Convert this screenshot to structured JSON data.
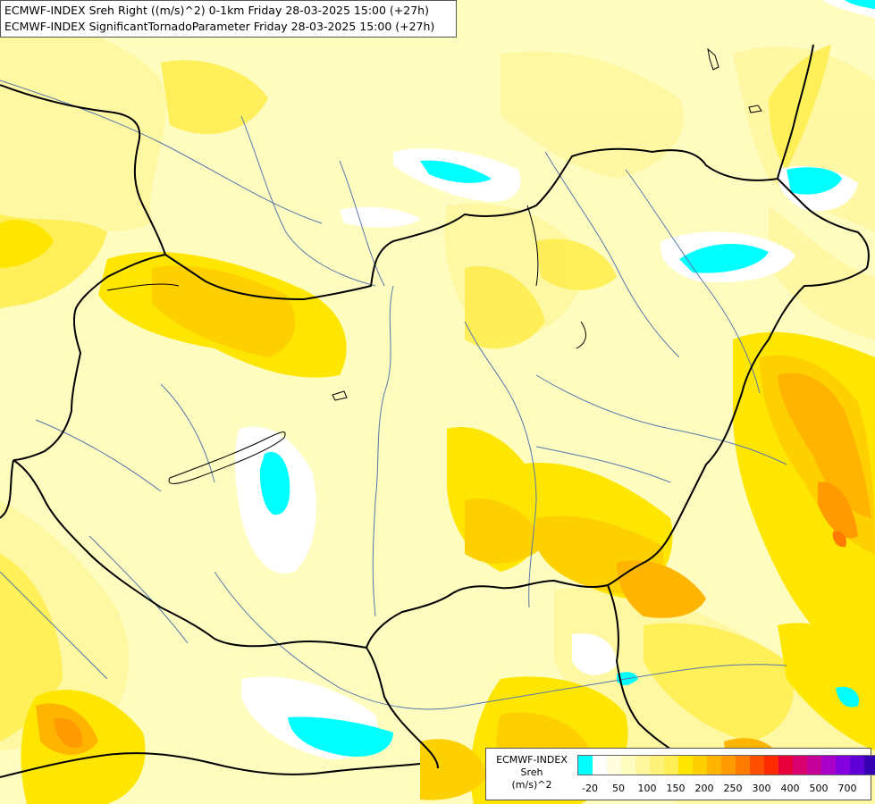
{
  "title_lines": [
    "ECMWF-INDEX Sreh Right ((m/s)^2) 0-1km Friday 28-03-2025 15:00 (+27h)",
    "ECMWF-INDEX SignificantTornadoParameter Friday 28-03-2025 15:00 (+27h)"
  ],
  "legend": {
    "title_lines": [
      "ECMWF-INDEX",
      "Sreh",
      "(m/s)^2"
    ],
    "colors": [
      "#00ffff",
      "#ffffff",
      "#fffde0",
      "#fffcc0",
      "#fff7a0",
      "#fff27a",
      "#ffee55",
      "#ffe600",
      "#ffd000",
      "#ffb400",
      "#ff9a00",
      "#ff7a00",
      "#ff5000",
      "#ff2a00",
      "#e8003a",
      "#d8006e",
      "#c40098",
      "#a800c8",
      "#8400e0",
      "#6000d8",
      "#3400b0",
      "#1a0080",
      "#000060"
    ],
    "labels": [
      "-20",
      "50",
      "100",
      "150",
      "200",
      "250",
      "300",
      "400",
      "500",
      "700"
    ]
  },
  "field_colors": {
    "base": "#fffcc0",
    "light": "#fff7a0",
    "mid": "#ffee55",
    "yellow": "#ffe600",
    "gold": "#ffd000",
    "orange": "#ffb400",
    "dark_orange": "#ff9a00",
    "red_orange": "#ff7a00",
    "white": "#ffffff",
    "cyan": "#00ffff",
    "border": "#000000",
    "river": "#5577aa"
  }
}
